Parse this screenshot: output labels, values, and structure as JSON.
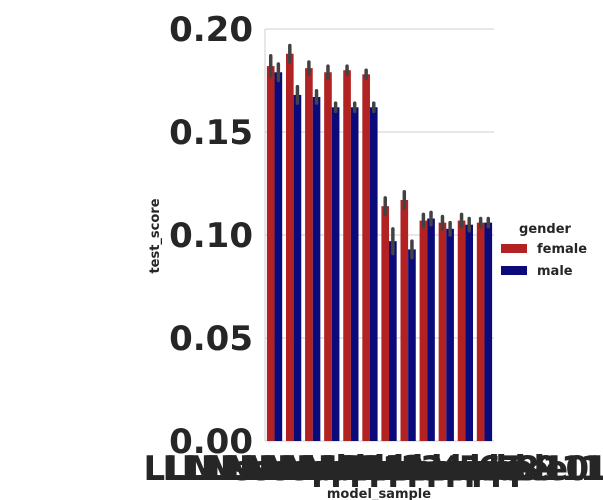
{
  "chart_data": {
    "type": "bar",
    "xlabel": "model_sample",
    "ylabel": "test_score",
    "ylim": [
      0,
      0.2
    ],
    "yticks": [
      "0.00",
      "0.05",
      "0.10",
      "0.15",
      "0.20"
    ],
    "grid": true,
    "legend": {
      "title": "gender",
      "placement": "right"
    },
    "categories": [
      "LLM sample 1",
      "LLM sample 2",
      "LLM sample 3",
      "LLM sample 4",
      "LLM sample 5",
      "LLM sample 6",
      "LLM sample 7",
      "LLM sample 8",
      "LLM sample 9",
      "LLM sample 10",
      "LLM sample 11",
      "LLM sample 12"
    ],
    "series": [
      {
        "name": "female",
        "color": "#b22222",
        "values": [
          0.182,
          0.188,
          0.181,
          0.179,
          0.18,
          0.178,
          0.114,
          0.117,
          0.107,
          0.106,
          0.107,
          0.106
        ],
        "err": [
          0.005,
          0.004,
          0.003,
          0.003,
          0.002,
          0.002,
          0.004,
          0.004,
          0.003,
          0.003,
          0.003,
          0.002
        ]
      },
      {
        "name": "male",
        "color": "#0a0a7a",
        "values": [
          0.179,
          0.168,
          0.167,
          0.162,
          0.162,
          0.162,
          0.097,
          0.093,
          0.108,
          0.103,
          0.105,
          0.106
        ],
        "err": [
          0.004,
          0.004,
          0.003,
          0.002,
          0.002,
          0.002,
          0.006,
          0.004,
          0.003,
          0.003,
          0.003,
          0.002
        ]
      }
    ]
  }
}
